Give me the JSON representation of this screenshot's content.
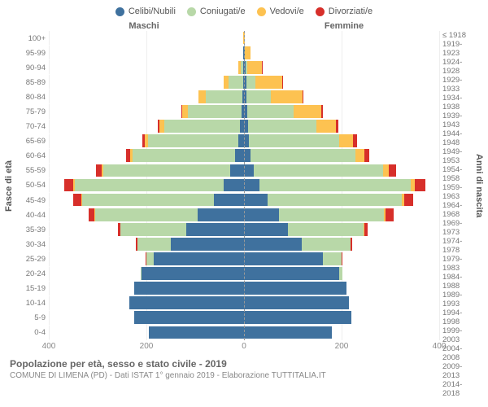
{
  "legend": [
    {
      "label": "Celibi/Nubili",
      "color": "#3f719e"
    },
    {
      "label": "Coniugati/e",
      "color": "#b8d8a8"
    },
    {
      "label": "Vedovi/e",
      "color": "#fdc251"
    },
    {
      "label": "Divorziati/e",
      "color": "#d72f2a"
    }
  ],
  "gender_headers": {
    "male": "Maschi",
    "female": "Femmine"
  },
  "axis_left_label": "Fasce di età",
  "axis_right_label": "Anni di nascita",
  "caption_title": "Popolazione per età, sesso e stato civile - 2019",
  "caption_sub": "COMUNE DI LIMENA (PD) - Dati ISTAT 1° gennaio 2019 - Elaborazione TUTTITALIA.IT",
  "max_value": 400,
  "x_ticks": [
    400,
    200,
    0,
    200,
    400
  ],
  "rows": [
    {
      "age": "100+",
      "birth": "≤ 1918",
      "m": {
        "c": 0,
        "k": 0,
        "v": 1,
        "d": 0
      },
      "f": {
        "c": 0,
        "k": 0,
        "v": 1,
        "d": 0
      }
    },
    {
      "age": "95-99",
      "birth": "1919-1923",
      "m": {
        "c": 1,
        "k": 0,
        "v": 0,
        "d": 0
      },
      "f": {
        "c": 1,
        "k": 0,
        "v": 12,
        "d": 0
      }
    },
    {
      "age": "90-94",
      "birth": "1924-1928",
      "m": {
        "c": 1,
        "k": 6,
        "v": 5,
        "d": 0
      },
      "f": {
        "c": 3,
        "k": 3,
        "v": 30,
        "d": 1
      }
    },
    {
      "age": "85-89",
      "birth": "1929-1933",
      "m": {
        "c": 2,
        "k": 30,
        "v": 10,
        "d": 0
      },
      "f": {
        "c": 5,
        "k": 18,
        "v": 55,
        "d": 1
      }
    },
    {
      "age": "80-84",
      "birth": "1934-1938",
      "m": {
        "c": 3,
        "k": 75,
        "v": 15,
        "d": 0
      },
      "f": {
        "c": 5,
        "k": 50,
        "v": 65,
        "d": 1
      }
    },
    {
      "age": "75-79",
      "birth": "1939-1943",
      "m": {
        "c": 5,
        "k": 110,
        "v": 12,
        "d": 2
      },
      "f": {
        "c": 6,
        "k": 95,
        "v": 58,
        "d": 3
      }
    },
    {
      "age": "70-74",
      "birth": "1944-1948",
      "m": {
        "c": 8,
        "k": 155,
        "v": 10,
        "d": 4
      },
      "f": {
        "c": 8,
        "k": 140,
        "v": 40,
        "d": 5
      }
    },
    {
      "age": "65-69",
      "birth": "1949-1953",
      "m": {
        "c": 12,
        "k": 185,
        "v": 6,
        "d": 6
      },
      "f": {
        "c": 10,
        "k": 185,
        "v": 28,
        "d": 8
      }
    },
    {
      "age": "60-64",
      "birth": "1954-1958",
      "m": {
        "c": 18,
        "k": 210,
        "v": 5,
        "d": 8
      },
      "f": {
        "c": 14,
        "k": 215,
        "v": 18,
        "d": 10
      }
    },
    {
      "age": "55-59",
      "birth": "1959-1963",
      "m": {
        "c": 28,
        "k": 260,
        "v": 4,
        "d": 12
      },
      "f": {
        "c": 20,
        "k": 265,
        "v": 12,
        "d": 14
      }
    },
    {
      "age": "50-54",
      "birth": "1964-1968",
      "m": {
        "c": 42,
        "k": 305,
        "v": 3,
        "d": 18
      },
      "f": {
        "c": 32,
        "k": 310,
        "v": 8,
        "d": 22
      }
    },
    {
      "age": "45-49",
      "birth": "1969-1973",
      "m": {
        "c": 62,
        "k": 270,
        "v": 2,
        "d": 16
      },
      "f": {
        "c": 48,
        "k": 275,
        "v": 5,
        "d": 18
      }
    },
    {
      "age": "40-44",
      "birth": "1974-1978",
      "m": {
        "c": 95,
        "k": 210,
        "v": 1,
        "d": 12
      },
      "f": {
        "c": 72,
        "k": 215,
        "v": 3,
        "d": 16
      }
    },
    {
      "age": "35-39",
      "birth": "1979-1983",
      "m": {
        "c": 118,
        "k": 135,
        "v": 0,
        "d": 6
      },
      "f": {
        "c": 90,
        "k": 155,
        "v": 1,
        "d": 8
      }
    },
    {
      "age": "30-34",
      "birth": "1984-1988",
      "m": {
        "c": 150,
        "k": 68,
        "v": 0,
        "d": 3
      },
      "f": {
        "c": 118,
        "k": 100,
        "v": 0,
        "d": 4
      }
    },
    {
      "age": "25-29",
      "birth": "1989-1993",
      "m": {
        "c": 185,
        "k": 15,
        "v": 0,
        "d": 1
      },
      "f": {
        "c": 162,
        "k": 38,
        "v": 0,
        "d": 1
      }
    },
    {
      "age": "20-24",
      "birth": "1994-1998",
      "m": {
        "c": 210,
        "k": 2,
        "v": 0,
        "d": 0
      },
      "f": {
        "c": 195,
        "k": 6,
        "v": 0,
        "d": 0
      }
    },
    {
      "age": "15-19",
      "birth": "1999-2003",
      "m": {
        "c": 225,
        "k": 0,
        "v": 0,
        "d": 0
      },
      "f": {
        "c": 210,
        "k": 0,
        "v": 0,
        "d": 0
      }
    },
    {
      "age": "10-14",
      "birth": "2004-2008",
      "m": {
        "c": 235,
        "k": 0,
        "v": 0,
        "d": 0
      },
      "f": {
        "c": 215,
        "k": 0,
        "v": 0,
        "d": 0
      }
    },
    {
      "age": "5-9",
      "birth": "2009-2013",
      "m": {
        "c": 225,
        "k": 0,
        "v": 0,
        "d": 0
      },
      "f": {
        "c": 220,
        "k": 0,
        "v": 0,
        "d": 0
      }
    },
    {
      "age": "0-4",
      "birth": "2014-2018",
      "m": {
        "c": 195,
        "k": 0,
        "v": 0,
        "d": 0
      },
      "f": {
        "c": 180,
        "k": 0,
        "v": 0,
        "d": 0
      }
    }
  ]
}
